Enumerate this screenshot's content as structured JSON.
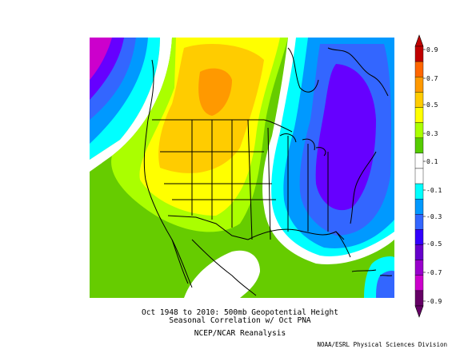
{
  "caption": {
    "line1": "Oct 1948 to 2010: 500mb Geopotential Height",
    "line2": "Seasonal Correlation w/ Oct PNA",
    "line3": "NCEP/NCAR Reanalysis"
  },
  "credit": "NOAA/ESRL Physical Sciences Division",
  "colorbar": {
    "ticks": [
      "0.9",
      "0.7",
      "0.5",
      "0.3",
      "0.1",
      "-0.1",
      "-0.3",
      "-0.5",
      "-0.7",
      "-0.9"
    ],
    "colors": [
      "#c00000",
      "#ff6600",
      "#ff9900",
      "#ffcc00",
      "#ffff00",
      "#aaff00",
      "#55cc00",
      "#ffffff",
      "#ffffff",
      "#00ffff",
      "#0099ff",
      "#3366ff",
      "#3300ff",
      "#6600cc",
      "#9900cc",
      "#cc00cc",
      "#660066"
    ]
  }
}
